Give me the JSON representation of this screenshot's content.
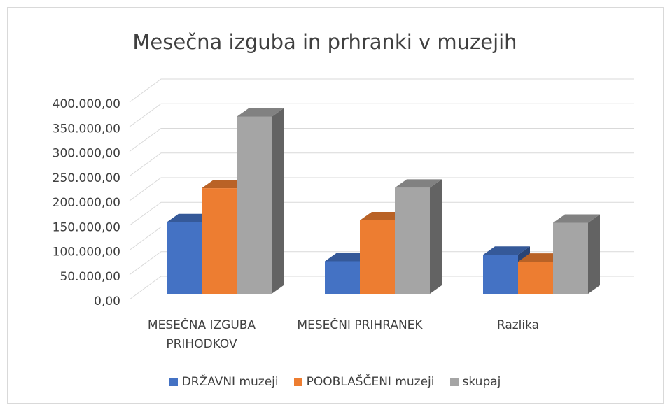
{
  "chart_data": {
    "type": "bar3d",
    "title": "Mesečna izguba in prhranki v muzejih",
    "categories": [
      "MESEČNA IZGUBA PRIHODKOV",
      "MESEČNI PRIHRANEK",
      "Razlika"
    ],
    "series": [
      {
        "name": "DRŽAVNI muzeji",
        "color": "#4472c4",
        "values": [
          145000,
          66000,
          79000
        ]
      },
      {
        "name": "POOBLAŠČENI muzeji",
        "color": "#ed7d31",
        "values": [
          214000,
          149000,
          65000
        ]
      },
      {
        "name": "skupaj",
        "color": "#a5a5a5",
        "values": [
          359000,
          215000,
          144000
        ]
      }
    ],
    "ylim": [
      0,
      400000
    ],
    "yticks": [
      {
        "value": 0,
        "label": "0,00"
      },
      {
        "value": 50000,
        "label": "50.000,00"
      },
      {
        "value": 100000,
        "label": "100.000,00"
      },
      {
        "value": 150000,
        "label": "150.000,00"
      },
      {
        "value": 200000,
        "label": "200.000,00"
      },
      {
        "value": 250000,
        "label": "250.000,00"
      },
      {
        "value": 300000,
        "label": "300.000,00"
      },
      {
        "value": 350000,
        "label": "350.000,00"
      },
      {
        "value": 400000,
        "label": "400.000,00"
      }
    ],
    "grid": true,
    "legend": "bottom"
  }
}
